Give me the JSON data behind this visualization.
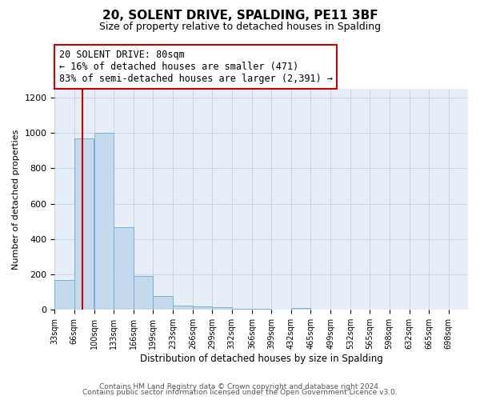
{
  "title": "20, SOLENT DRIVE, SPALDING, PE11 3BF",
  "subtitle": "Size of property relative to detached houses in Spalding",
  "xlabel": "Distribution of detached houses by size in Spalding",
  "ylabel": "Number of detached properties",
  "bar_color": "#c5d9ed",
  "bar_edge_color": "#7aafd4",
  "bins": [
    33,
    66,
    100,
    133,
    166,
    199,
    233,
    266,
    299,
    332,
    366,
    399,
    432,
    465,
    499,
    532,
    565,
    598,
    632,
    665,
    698
  ],
  "values": [
    170,
    970,
    1000,
    465,
    190,
    80,
    25,
    18,
    15,
    8,
    5,
    0,
    12,
    0,
    0,
    0,
    0,
    0,
    0,
    0
  ],
  "ylim": [
    0,
    1250
  ],
  "yticks": [
    0,
    200,
    400,
    600,
    800,
    1000,
    1200
  ],
  "property_size": 80,
  "red_line_color": "#cc0000",
  "annotation_line1": "20 SOLENT DRIVE: 80sqm",
  "annotation_line2": "← 16% of detached houses are smaller (471)",
  "annotation_line3": "83% of semi-detached houses are larger (2,391) →",
  "annotation_box_color": "#cc0000",
  "grid_color": "#c8d4e8",
  "background_color": "#e8eef8",
  "footer_line1": "Contains HM Land Registry data © Crown copyright and database right 2024.",
  "footer_line2": "Contains public sector information licensed under the Open Government Licence v3.0."
}
